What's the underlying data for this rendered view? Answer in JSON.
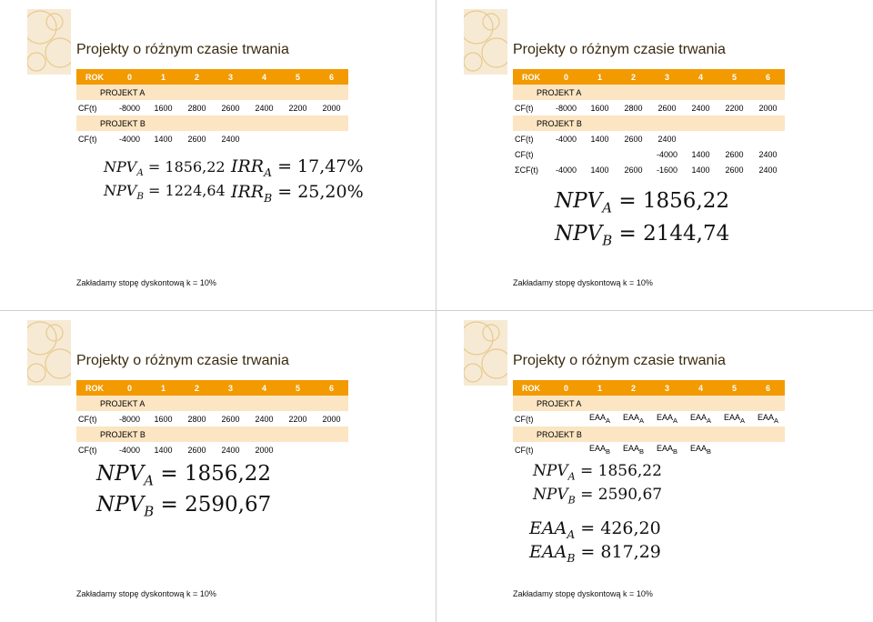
{
  "slides": [
    {
      "title": "Projekty o różnym czasie trwania",
      "header": [
        "ROK",
        "0",
        "1",
        "2",
        "3",
        "4",
        "5",
        "6"
      ],
      "rows": [
        {
          "kind": "sub",
          "label": "PROJEKT A",
          "cells": []
        },
        {
          "kind": "data",
          "label": "CF(t)",
          "cells": [
            "-8000",
            "1600",
            "2800",
            "2600",
            "2400",
            "2200",
            "2000"
          ]
        },
        {
          "kind": "sub",
          "label": "PROJEKT B",
          "cells": []
        },
        {
          "kind": "data",
          "label": "CF(t)",
          "cells": [
            "-4000",
            "1400",
            "2600",
            "2400"
          ]
        }
      ],
      "formulas": [
        "NPV_A = 1856,22",
        "NPV_B = 1224,64",
        "IRR_A = 17,47%",
        "IRR_B = 25,20%"
      ],
      "note": "Zakładamy stopę dyskontową k = 10%"
    },
    {
      "title": "Projekty o różnym czasie trwania",
      "header": [
        "ROK",
        "0",
        "1",
        "2",
        "3",
        "4",
        "5",
        "6"
      ],
      "rows": [
        {
          "kind": "sub",
          "label": "PROJEKT A",
          "cells": []
        },
        {
          "kind": "data",
          "label": "CF(t)",
          "cells": [
            "-8000",
            "1600",
            "2800",
            "2600",
            "2400",
            "2200",
            "2000"
          ]
        },
        {
          "kind": "sub",
          "label": "PROJEKT B",
          "cells": []
        },
        {
          "kind": "data",
          "label": "CF(t)",
          "cells": [
            "-4000",
            "1400",
            "2600",
            "2400"
          ]
        },
        {
          "kind": "data",
          "label": "CF(t)",
          "cells": [
            "",
            "",
            "",
            "-4000",
            "1400",
            "2600",
            "2400"
          ]
        },
        {
          "kind": "data",
          "label": "ΣCF(t)",
          "cells": [
            "-4000",
            "1400",
            "2600",
            "-1600",
            "1400",
            "2600",
            "2400"
          ]
        }
      ],
      "formulas": [
        "NPV_A = 1856,22",
        "NPV_B = 2144,74"
      ],
      "note": "Zakładamy stopę dyskontową k = 10%"
    },
    {
      "title": "Projekty o różnym czasie trwania",
      "header": [
        "ROK",
        "0",
        "1",
        "2",
        "3",
        "4",
        "5",
        "6"
      ],
      "rows": [
        {
          "kind": "sub",
          "label": "PROJEKT A",
          "cells": []
        },
        {
          "kind": "data",
          "label": "CF(t)",
          "cells": [
            "-8000",
            "1600",
            "2800",
            "2600",
            "2400",
            "2200",
            "2000"
          ]
        },
        {
          "kind": "sub",
          "label": "PROJEKT B",
          "cells": []
        },
        {
          "kind": "data",
          "label": "CF(t)",
          "cells": [
            "-4000",
            "1400",
            "2600",
            "2400",
            "2000"
          ]
        }
      ],
      "formulas": [
        "NPV_A = 1856,22",
        "NPV_B = 2590,67"
      ],
      "note": "Zakładamy stopę dyskontową k = 10%"
    },
    {
      "title": "Projekty o różnym czasie trwania",
      "header": [
        "ROK",
        "0",
        "1",
        "2",
        "3",
        "4",
        "5",
        "6"
      ],
      "rows": [
        {
          "kind": "sub",
          "label": "PROJEKT A",
          "cells": []
        },
        {
          "kind": "data",
          "label": "CF(t)",
          "cells": [
            "",
            "EAA_A",
            "EAA_A",
            "EAA_A",
            "EAA_A",
            "EAA_A",
            "EAA_A"
          ]
        },
        {
          "kind": "sub",
          "label": "PROJEKT B",
          "cells": []
        },
        {
          "kind": "data",
          "label": "CF(t)",
          "cells": [
            "",
            "EAA_B",
            "EAA_B",
            "EAA_B",
            "EAA_B"
          ]
        }
      ],
      "formulas": [
        "NPV_A = 1856,22",
        "NPV_B = 2590,67",
        "EAA_A = 426,20",
        "EAA_B = 817,29"
      ],
      "note": "Zakładamy stopę dyskontową k = 10%"
    }
  ],
  "colors": {
    "header_bg": "#f29a00",
    "sub_bg": "#fce5c2",
    "title": "#3a2a0e"
  }
}
